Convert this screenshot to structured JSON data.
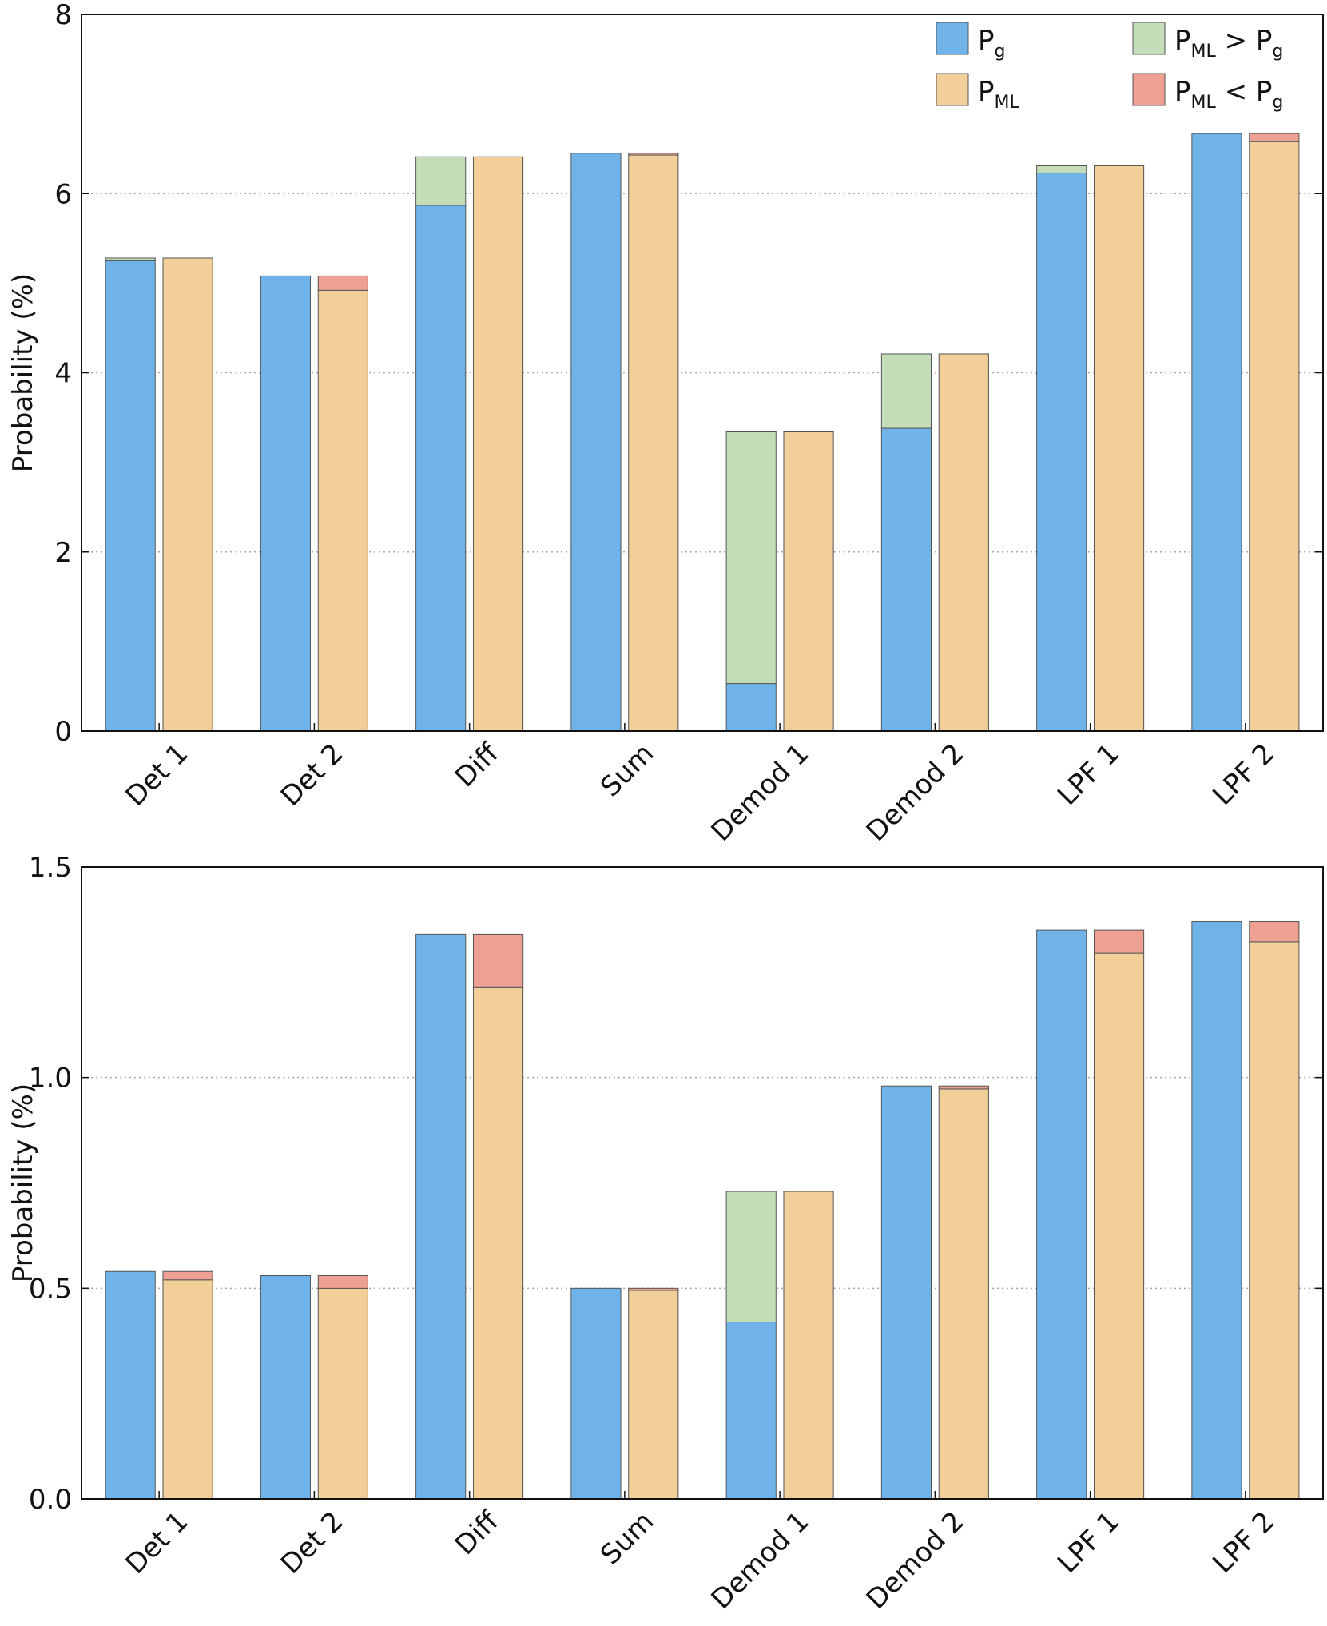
{
  "colors": {
    "pg": "#6fb3e8",
    "pml": "#f2cf98",
    "pml_gt_pg": "#c3ddb8",
    "pml_lt_pg": "#eea193",
    "edge": "#555555",
    "grid": "#aaaaaa"
  },
  "legend": {
    "items": [
      {
        "key": "pg",
        "label_main": "P",
        "label_sub": "g",
        "label_rest": ""
      },
      {
        "key": "pml",
        "label_main": "P",
        "label_sub": "ML",
        "label_rest": ""
      },
      {
        "key": "pml_gt_pg",
        "label_main": "P",
        "label_sub": "ML",
        "label_rest": " > P",
        "label_rest_sub": "g"
      },
      {
        "key": "pml_lt_pg",
        "label_main": "P",
        "label_sub": "ML",
        "label_rest": " < P",
        "label_rest_sub": "g"
      }
    ]
  },
  "chart_data": [
    {
      "type": "bar",
      "ylabel": "Probability (%)",
      "ylim": [
        0,
        8
      ],
      "yticks": [
        "0",
        "2",
        "4",
        "6",
        "8"
      ],
      "ytick_values": [
        0,
        2,
        4,
        6,
        8
      ],
      "grid": "dotted horizontal",
      "legend_position": "top-right",
      "categories": [
        "Det 1",
        "Det 2",
        "Diff",
        "Sum",
        "Demod 1",
        "Demod 2",
        "LPF 1",
        "LPF 2"
      ],
      "series": [
        {
          "name": "Pg",
          "values": [
            5.27,
            5.08,
            6.41,
            6.45,
            0.53,
            3.38,
            6.23,
            6.67
          ]
        },
        {
          "name": "PML",
          "values": [
            5.28,
            4.92,
            6.41,
            6.43,
            3.34,
            4.21,
            6.31,
            6.58
          ]
        },
        {
          "name": "Pg (reference)",
          "values": [
            5.25,
            5.08,
            5.87,
            6.45,
            0.53,
            3.38,
            6.23,
            6.67
          ]
        }
      ]
    },
    {
      "type": "bar",
      "ylabel": "Probability (%)",
      "ylim": [
        0,
        1.5
      ],
      "yticks": [
        "0.0",
        "0.5",
        "1.0",
        "1.5"
      ],
      "ytick_values": [
        0,
        0.5,
        1.0,
        1.5
      ],
      "grid": "dotted horizontal",
      "categories": [
        "Det 1",
        "Det 2",
        "Diff",
        "Sum",
        "Demod 1",
        "Demod 2",
        "LPF 1",
        "LPF 2"
      ],
      "series": [
        {
          "name": "Pg",
          "values": [
            0.54,
            0.53,
            1.34,
            0.5,
            0.42,
            0.98,
            1.35,
            1.37
          ]
        },
        {
          "name": "PML",
          "values": [
            0.52,
            0.5,
            1.215,
            0.495,
            0.73,
            0.973,
            1.295,
            1.322
          ]
        }
      ]
    }
  ]
}
